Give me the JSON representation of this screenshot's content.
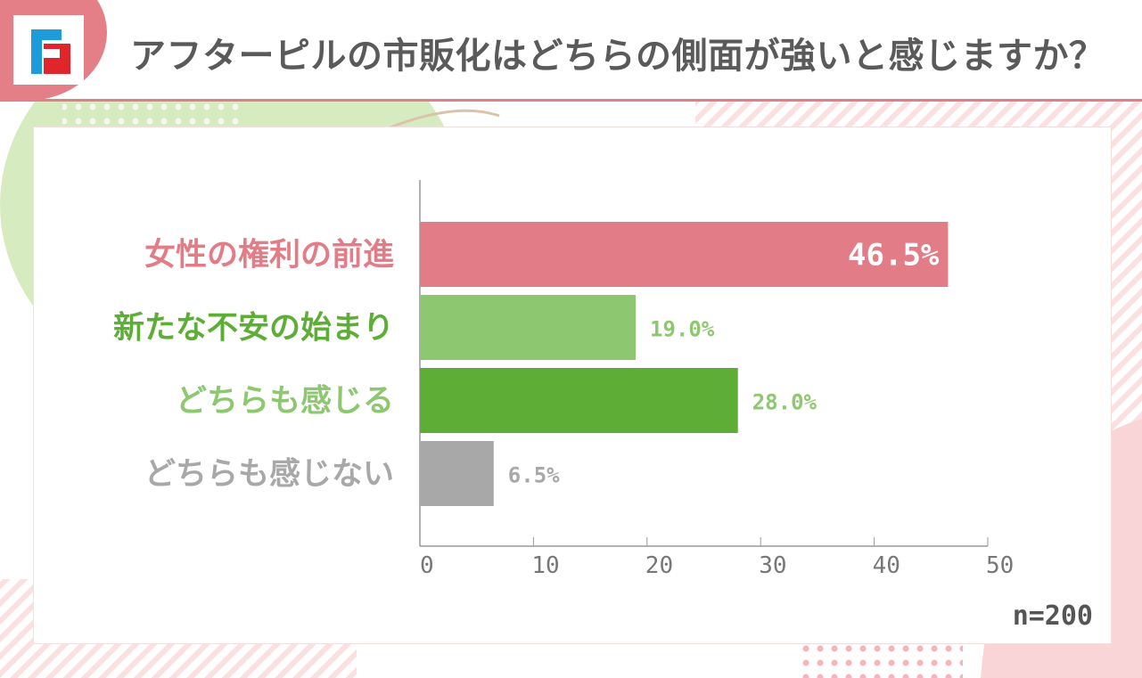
{
  "header": {
    "title": "アフターピルの市販化はどちらの側面が強いと感じますか？",
    "logo_text": "F"
  },
  "chart_data": {
    "type": "bar",
    "orientation": "horizontal",
    "title": "アフターピルの市販化はどちらの側面が強いと感じますか？",
    "categories": [
      "女性の権利の前進",
      "新たな不安の始まり",
      "どちらも感じる",
      "どちらも感じない"
    ],
    "values": [
      46.5,
      19.0,
      28.0,
      6.5
    ],
    "value_labels": [
      "46.5%",
      "19.0%",
      "28.0%",
      "6.5%"
    ],
    "bar_colors": [
      "#e27c86",
      "#8dc76f",
      "#5dad37",
      "#a8a8a8"
    ],
    "label_colors": [
      "#e27c86",
      "#5dad37",
      "#8dc76f",
      "#a8a8a8"
    ],
    "xlim": [
      0,
      50
    ],
    "xticks": [
      0,
      10,
      20,
      30,
      40,
      50
    ],
    "xlabel": "",
    "ylabel": "",
    "grid": false,
    "note": "n=200"
  }
}
